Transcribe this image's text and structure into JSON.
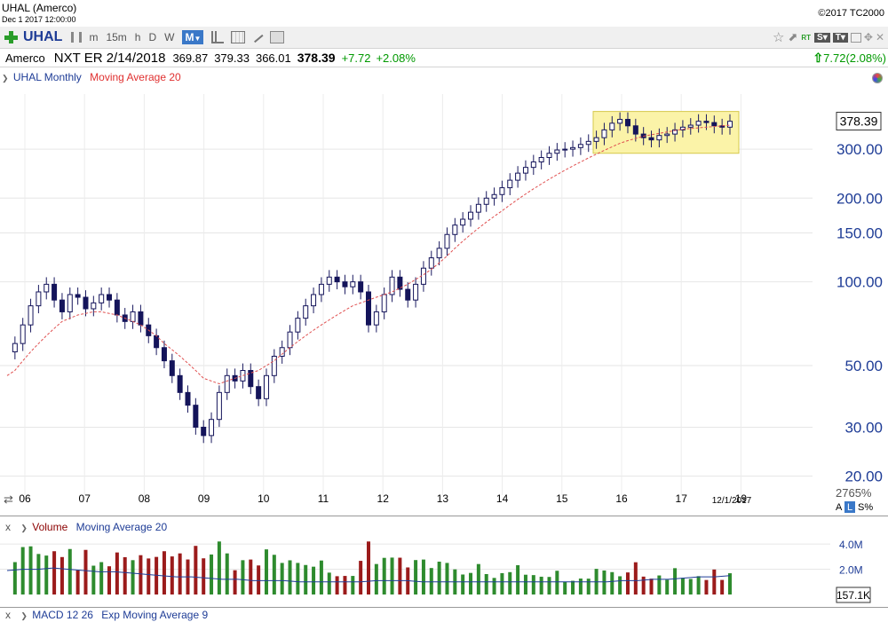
{
  "window": {
    "title": "UHAL (Amerco)",
    "datetime": "Dec 1 2017 12:00:00",
    "copyright": "©2017 TC2000"
  },
  "toolbar": {
    "symbol": "UHAL",
    "timeframes": [
      "m",
      "15m",
      "h",
      "D",
      "W",
      "M"
    ],
    "active_timeframe": "M",
    "rt_label": "RT",
    "s_label": "S",
    "t_label": "T"
  },
  "quote": {
    "company": "Amerco",
    "earnings": "NXT ER 2/14/2018",
    "open": "369.87",
    "high": "379.33",
    "low": "366.01",
    "last": "378.39",
    "change": "+7.72",
    "change_pct": "+2.08%",
    "change_summary": "7.72(2.08%)",
    "colors": {
      "up": "#009900",
      "down": "#cc0000",
      "accent": "#1e3c96"
    }
  },
  "price_pane": {
    "legend_series": "UHAL Monthly",
    "legend_ma": "Moving Average 20",
    "last_price_tag": "378.39",
    "date_tag": "12/1/2017",
    "footer_left": "2765%",
    "footer_a": "A",
    "footer_l": "L",
    "footer_s": "S%"
  },
  "volume_pane": {
    "close_label": "x",
    "legend_volume": "Volume",
    "legend_ma": "Moving Average 20",
    "last_volume_tag": "157.1K"
  },
  "macd_pane": {
    "close_label": "x",
    "legend_macd": "MACD 12 26",
    "legend_ema": "Exp Moving Average 9"
  },
  "chart_data": {
    "type": "candlestick",
    "scale": "log",
    "ylim": [
      18,
      440
    ],
    "yticks": [
      20,
      30,
      50,
      100,
      150,
      200,
      300
    ],
    "ytick_labels": [
      "20.00",
      "30.00",
      "50.00",
      "100.00",
      "150.00",
      "200.00",
      "300.00"
    ],
    "xtick_labels": [
      "06",
      "07",
      "08",
      "09",
      "10",
      "11",
      "12",
      "13",
      "14",
      "15",
      "16",
      "17",
      "19"
    ],
    "annotation": "highlighted consolidation range 2016-2017",
    "highlight_range": [
      290,
      410
    ],
    "close_path": [
      56,
      60,
      70,
      82,
      92,
      98,
      86,
      78,
      90,
      88,
      80,
      84,
      90,
      86,
      76,
      72,
      78,
      70,
      64,
      58,
      52,
      46,
      40,
      36,
      30,
      28,
      32,
      40,
      46,
      44,
      48,
      42,
      38,
      46,
      54,
      58,
      66,
      74,
      82,
      90,
      98,
      104,
      100,
      96,
      100,
      92,
      70,
      78,
      90,
      104,
      94,
      86,
      98,
      112,
      122,
      132,
      148,
      160,
      168,
      178,
      190,
      200,
      206,
      218,
      232,
      246,
      258,
      270,
      280,
      290,
      298,
      300,
      304,
      312,
      320,
      330,
      352,
      372,
      384,
      364,
      340,
      330,
      324,
      336,
      340,
      352,
      360,
      366,
      378,
      374,
      364,
      360,
      378
    ],
    "ma20_path": [
      46,
      48,
      52,
      56,
      60,
      64,
      68,
      72,
      74,
      76,
      77,
      78,
      78,
      77,
      76,
      74,
      72,
      70,
      67,
      64,
      60,
      57,
      54,
      51,
      48,
      45,
      44,
      43,
      44,
      45,
      46,
      47,
      48,
      50,
      52,
      55,
      58,
      61,
      64,
      67,
      70,
      73,
      76,
      79,
      82,
      84,
      86,
      88,
      90,
      92,
      95,
      98,
      102,
      106,
      111,
      117,
      124,
      132,
      140,
      148,
      156,
      164,
      172,
      180,
      189,
      198,
      207,
      216,
      225,
      234,
      243,
      252,
      261,
      270,
      279,
      288,
      297,
      306,
      315,
      322,
      328,
      334,
      338,
      342,
      346,
      350,
      354,
      356,
      358,
      360,
      362,
      364,
      366
    ],
    "volume_ma": [
      1.9,
      2.0,
      2.0,
      2.1,
      2.0,
      1.9,
      1.8,
      1.8,
      1.7,
      1.6,
      1.5,
      1.4,
      1.4,
      1.3,
      1.2,
      1.2,
      1.1,
      1.1,
      1.1,
      1.0,
      1.0,
      1.0,
      1.0,
      1.0,
      1.1,
      1.1,
      1.1,
      1.0,
      1.0,
      1.0,
      1.0,
      1.0,
      1.0,
      1.0,
      1.0,
      1.0,
      1.0,
      1.0,
      1.0,
      1.0,
      1.1,
      1.1,
      1.2,
      1.2,
      1.3,
      1.4,
      1.4,
      1.5
    ],
    "volume_ylim": [
      0,
      4.5
    ],
    "volume_yticks": [
      "4.0M",
      "2.0M"
    ]
  }
}
